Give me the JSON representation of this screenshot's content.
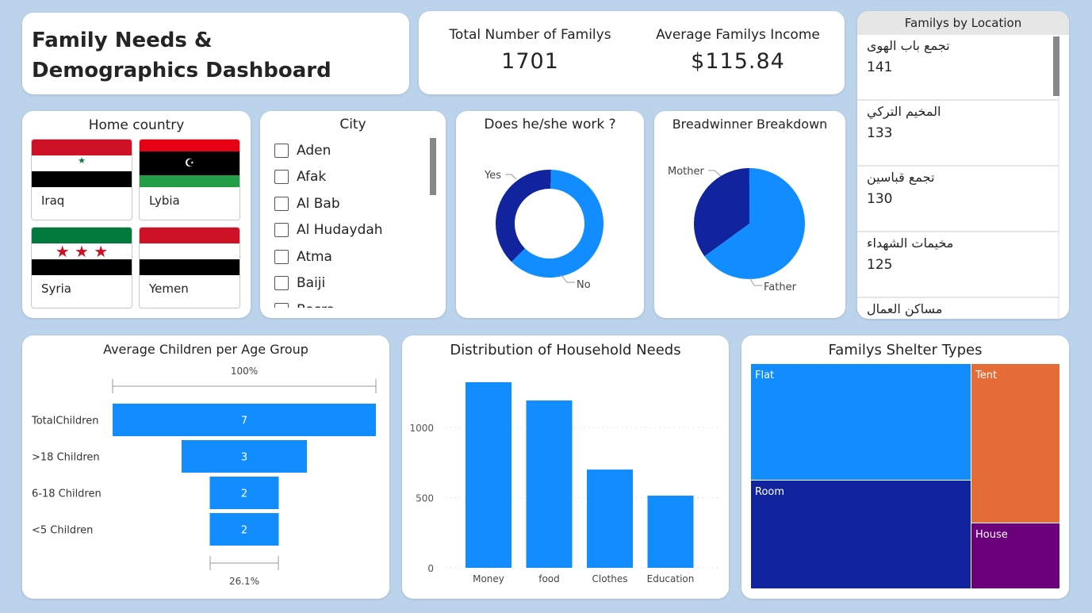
{
  "title": "Family Needs & Demographics Dashboard",
  "kpis": [
    {
      "label": "Total Number of Familys",
      "value": "1701"
    },
    {
      "label": "Average Familys Income",
      "value": "$115.84"
    }
  ],
  "home_country": {
    "title": "Home country",
    "items": [
      "Iraq",
      "Lybia",
      "Syria",
      "Yemen"
    ]
  },
  "city": {
    "title": "City",
    "items": [
      "Aden",
      "Afak",
      "Al Bab",
      "Al Hudaydah",
      "Atma",
      "Baiji",
      "Basra"
    ]
  },
  "location": {
    "title": "Familys by Location",
    "items": [
      {
        "name": "تجمع باب الهوى",
        "value": "141"
      },
      {
        "name": "المخيم التركي",
        "value": "133"
      },
      {
        "name": "تجمع قباسين",
        "value": "130"
      },
      {
        "name": "مخيمات الشهداء",
        "value": "125"
      },
      {
        "name": "مساكن العمال",
        "value": ""
      }
    ]
  },
  "colors": {
    "primary": "#118dff",
    "dark": "#12239e",
    "orange": "#e66c37",
    "purple": "#6b007b"
  },
  "chart_data": [
    {
      "type": "donut",
      "title": "Does he/she work ?",
      "categories": [
        "Yes",
        "No"
      ],
      "values": [
        38,
        62
      ]
    },
    {
      "type": "pie",
      "title": "Breadwinner Breakdown",
      "categories": [
        "Mother",
        "Father"
      ],
      "values": [
        35,
        65
      ]
    },
    {
      "type": "funnel",
      "title": "Average Children per Age Group",
      "categories": [
        "TotalChildren",
        ">18 Children",
        "6-18 Children",
        "<5 Children"
      ],
      "values": [
        7,
        3,
        2,
        2
      ],
      "top_label": "100%",
      "bottom_label": "26.1%"
    },
    {
      "type": "bar",
      "title": "Distribution of Household Needs",
      "categories": [
        "Money",
        "food",
        "Clothes",
        "Education"
      ],
      "values": [
        1322,
        1192,
        700,
        514
      ],
      "yticks": [
        0,
        500,
        1000
      ],
      "ylim": [
        0,
        1450
      ],
      "grid": true
    },
    {
      "type": "treemap",
      "title": "Familys Shelter Types",
      "categories": [
        "Flat",
        "Room",
        "Tent",
        "House"
      ],
      "values": [
        38,
        34,
        18,
        10
      ]
    }
  ]
}
